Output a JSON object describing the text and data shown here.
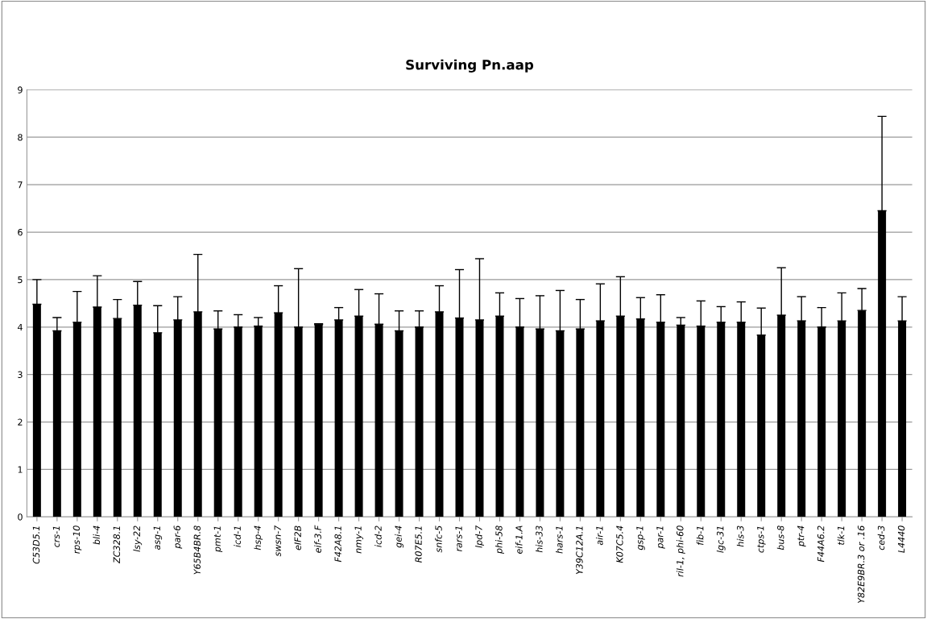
{
  "chart_data": {
    "type": "bar",
    "title": "Surviving Pn.aap",
    "categories": [
      "C53D5.1",
      "crs-1",
      "rps-10",
      "bli-4",
      "ZC328.1",
      "lsy-22",
      "asg-1",
      "par-6",
      "Y65B4BR.8",
      "pmt-1",
      "icd-1",
      "hsp-4",
      "swsn-7",
      "eIF2B",
      "eif-3.F",
      "F42A8.1",
      "nmy-1",
      "icd-2",
      "gei-4",
      "R07E5.1",
      "snfc-5",
      "rars-1",
      "lpd-7",
      "phi-58",
      "eif-1.A",
      "his-33",
      "hars-1",
      "Y39C12A.1",
      "air-1",
      "K07C5.4",
      "gsp-1",
      "par-1",
      "ril-1, phi-60",
      "fib-1",
      "lgc-31",
      "his-3",
      "ctps-1",
      "bus-8",
      "ptr-4",
      "F44A6.2",
      "tlk-1",
      "Y82E9BR.3 or .16",
      "ced-3",
      "L4440"
    ],
    "values": [
      4.48,
      3.92,
      4.1,
      4.42,
      4.18,
      4.46,
      3.88,
      4.15,
      4.32,
      3.96,
      4.0,
      4.02,
      4.3,
      4.0,
      4.05,
      4.15,
      4.23,
      4.06,
      3.92,
      4.0,
      4.32,
      4.19,
      4.15,
      4.23,
      4.0,
      3.96,
      3.92,
      3.96,
      4.13,
      4.23,
      4.17,
      4.1,
      4.04,
      4.02,
      4.1,
      4.1,
      3.83,
      4.25,
      4.13,
      4.0,
      4.13,
      4.35,
      6.45,
      4.13
    ],
    "errors": [
      [
        4.48,
        5.0
      ],
      [
        3.92,
        4.2
      ],
      [
        4.1,
        4.75
      ],
      [
        4.42,
        5.08
      ],
      [
        4.18,
        4.58
      ],
      [
        4.46,
        4.96
      ],
      [
        3.88,
        4.45
      ],
      [
        4.15,
        4.64
      ],
      [
        4.32,
        5.53
      ],
      [
        3.96,
        4.34
      ],
      [
        4.0,
        4.26
      ],
      [
        4.02,
        4.2
      ],
      [
        4.3,
        4.87
      ],
      [
        4.0,
        5.23
      ],
      [
        4.05,
        4.07
      ],
      [
        4.15,
        4.41
      ],
      [
        4.23,
        4.79
      ],
      [
        4.06,
        4.7
      ],
      [
        3.92,
        4.34
      ],
      [
        4.0,
        4.34
      ],
      [
        4.32,
        4.87
      ],
      [
        4.19,
        5.21
      ],
      [
        4.15,
        5.44
      ],
      [
        4.23,
        4.72
      ],
      [
        4.0,
        4.6
      ],
      [
        3.96,
        4.66
      ],
      [
        3.92,
        4.77
      ],
      [
        3.96,
        4.58
      ],
      [
        4.13,
        4.91
      ],
      [
        4.23,
        5.06
      ],
      [
        4.17,
        4.62
      ],
      [
        4.1,
        4.68
      ],
      [
        4.04,
        4.2
      ],
      [
        4.02,
        4.55
      ],
      [
        4.1,
        4.43
      ],
      [
        4.1,
        4.53
      ],
      [
        3.83,
        4.4
      ],
      [
        4.25,
        5.25
      ],
      [
        4.13,
        4.64
      ],
      [
        4.0,
        4.41
      ],
      [
        4.13,
        4.72
      ],
      [
        4.35,
        4.81
      ],
      [
        6.45,
        8.44
      ],
      [
        4.13,
        4.64
      ]
    ],
    "color": "#000000",
    "ylim": [
      0,
      9
    ],
    "yticks": [
      0,
      1,
      2,
      3,
      4,
      5,
      6,
      7,
      8,
      9
    ],
    "grid": "y"
  }
}
